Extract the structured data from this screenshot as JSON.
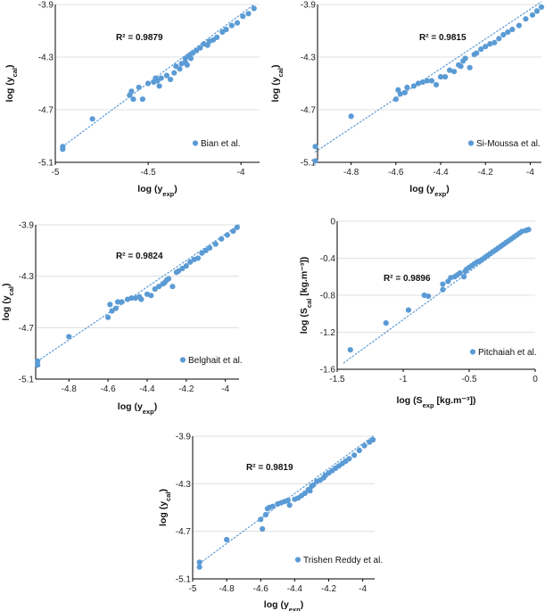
{
  "chart_data": [
    {
      "type": "scatter",
      "xlim": [
        -5,
        -3.9
      ],
      "ylim": [
        -5.1,
        -3.9
      ],
      "xticks": [
        -5,
        -4.5,
        -4
      ],
      "yticks": [
        -5.1,
        -4.7,
        -4.3,
        -3.9
      ],
      "xlabel_main": "log (y",
      "xlabel_sub": "exp",
      "xlabel_end": ")",
      "ylabel_main": "log (y",
      "ylabel_sub": "cal",
      "ylabel_end": ")",
      "annotation": "R² = 0.9879",
      "legend": "Bian et al.",
      "legend_position": "bottom-right",
      "trendline": [
        [
          -4.96,
          -4.98
        ],
        [
          -3.93,
          -3.9
        ]
      ],
      "points": [
        [
          -4.96,
          -4.98
        ],
        [
          -4.96,
          -5.0
        ],
        [
          -4.8,
          -4.77
        ],
        [
          -4.6,
          -4.59
        ],
        [
          -4.58,
          -4.62
        ],
        [
          -4.59,
          -4.56
        ],
        [
          -4.55,
          -4.53
        ],
        [
          -4.53,
          -4.62
        ],
        [
          -4.5,
          -4.5
        ],
        [
          -4.47,
          -4.49
        ],
        [
          -4.46,
          -4.46
        ],
        [
          -4.45,
          -4.48
        ],
        [
          -4.44,
          -4.52
        ],
        [
          -4.43,
          -4.46
        ],
        [
          -4.4,
          -4.44
        ],
        [
          -4.38,
          -4.47
        ],
        [
          -4.36,
          -4.42
        ],
        [
          -4.35,
          -4.37
        ],
        [
          -4.33,
          -4.39
        ],
        [
          -4.32,
          -4.35
        ],
        [
          -4.3,
          -4.34
        ],
        [
          -4.3,
          -4.31
        ],
        [
          -4.29,
          -4.36
        ],
        [
          -4.28,
          -4.29
        ],
        [
          -4.27,
          -4.31
        ],
        [
          -4.26,
          -4.27
        ],
        [
          -4.24,
          -4.25
        ],
        [
          -4.22,
          -4.23
        ],
        [
          -4.2,
          -4.2
        ],
        [
          -4.18,
          -4.21
        ],
        [
          -4.17,
          -4.18
        ],
        [
          -4.15,
          -4.17
        ],
        [
          -4.13,
          -4.15
        ],
        [
          -4.1,
          -4.11
        ],
        [
          -4.08,
          -4.09
        ],
        [
          -4.05,
          -4.06
        ],
        [
          -4.02,
          -4.04
        ],
        [
          -3.99,
          -3.99
        ],
        [
          -3.96,
          -3.97
        ],
        [
          -3.93,
          -3.93
        ]
      ]
    },
    {
      "type": "scatter",
      "xlim": [
        -4.95,
        -3.95
      ],
      "ylim": [
        -5.1,
        -3.9
      ],
      "xticks": [
        -4.8,
        -4.6,
        -4.4,
        -4.2,
        -4
      ],
      "yticks": [
        -5.1,
        -4.7,
        -4.3,
        -3.9
      ],
      "xlabel_main": "log (y",
      "xlabel_sub": "exp",
      "xlabel_end": ")",
      "ylabel_main": "log (y",
      "ylabel_sub": "cal",
      "ylabel_end": ")",
      "annotation": "R² = 0.9815",
      "legend": "Si-Moussa et al.",
      "legend_position": "bottom-right",
      "trendline": [
        [
          -4.96,
          -5.02
        ],
        [
          -3.95,
          -3.88
        ]
      ],
      "points": [
        [
          -4.96,
          -4.98
        ],
        [
          -4.96,
          -5.09
        ],
        [
          -4.8,
          -4.75
        ],
        [
          -4.6,
          -4.62
        ],
        [
          -4.59,
          -4.55
        ],
        [
          -4.58,
          -4.58
        ],
        [
          -4.56,
          -4.57
        ],
        [
          -4.55,
          -4.53
        ],
        [
          -4.52,
          -4.52
        ],
        [
          -4.5,
          -4.5
        ],
        [
          -4.48,
          -4.49
        ],
        [
          -4.46,
          -4.48
        ],
        [
          -4.44,
          -4.48
        ],
        [
          -4.42,
          -4.51
        ],
        [
          -4.4,
          -4.45
        ],
        [
          -4.38,
          -4.45
        ],
        [
          -4.36,
          -4.4
        ],
        [
          -4.34,
          -4.41
        ],
        [
          -4.32,
          -4.36
        ],
        [
          -4.31,
          -4.37
        ],
        [
          -4.3,
          -4.33
        ],
        [
          -4.29,
          -4.31
        ],
        [
          -4.27,
          -4.38
        ],
        [
          -4.25,
          -4.28
        ],
        [
          -4.24,
          -4.27
        ],
        [
          -4.22,
          -4.24
        ],
        [
          -4.2,
          -4.22
        ],
        [
          -4.18,
          -4.2
        ],
        [
          -4.16,
          -4.19
        ],
        [
          -4.14,
          -4.16
        ],
        [
          -4.12,
          -4.13
        ],
        [
          -4.1,
          -4.11
        ],
        [
          -4.08,
          -4.09
        ],
        [
          -4.05,
          -4.06
        ],
        [
          -4.02,
          -4.01
        ],
        [
          -3.99,
          -3.98
        ],
        [
          -3.97,
          -3.95
        ],
        [
          -3.95,
          -3.92
        ]
      ]
    },
    {
      "type": "scatter",
      "xlim": [
        -4.97,
        -3.93
      ],
      "ylim": [
        -5.1,
        -3.9
      ],
      "xticks": [
        -4.8,
        -4.6,
        -4.4,
        -4.2,
        -4
      ],
      "yticks": [
        -5.1,
        -4.7,
        -4.3,
        -3.9
      ],
      "xlabel_main": "log (y",
      "xlabel_sub": "exp",
      "xlabel_end": ")",
      "ylabel_main": "log (y",
      "ylabel_sub": "cal",
      "ylabel_end": ")",
      "annotation": "R² = 0.9824",
      "legend": "Belghait et al.",
      "legend_position": "bottom-right",
      "trendline": [
        [
          -4.96,
          -4.96
        ],
        [
          -3.93,
          -3.9
        ]
      ],
      "points": [
        [
          -4.96,
          -4.96
        ],
        [
          -4.96,
          -4.99
        ],
        [
          -4.8,
          -4.77
        ],
        [
          -4.6,
          -4.62
        ],
        [
          -4.59,
          -4.52
        ],
        [
          -4.58,
          -4.57
        ],
        [
          -4.56,
          -4.55
        ],
        [
          -4.55,
          -4.5
        ],
        [
          -4.53,
          -4.5
        ],
        [
          -4.5,
          -4.48
        ],
        [
          -4.48,
          -4.47
        ],
        [
          -4.46,
          -4.47
        ],
        [
          -4.44,
          -4.46
        ],
        [
          -4.43,
          -4.48
        ],
        [
          -4.4,
          -4.44
        ],
        [
          -4.38,
          -4.45
        ],
        [
          -4.36,
          -4.4
        ],
        [
          -4.34,
          -4.38
        ],
        [
          -4.32,
          -4.36
        ],
        [
          -4.31,
          -4.35
        ],
        [
          -4.3,
          -4.33
        ],
        [
          -4.29,
          -4.32
        ],
        [
          -4.27,
          -4.38
        ],
        [
          -4.25,
          -4.27
        ],
        [
          -4.24,
          -4.26
        ],
        [
          -4.22,
          -4.24
        ],
        [
          -4.2,
          -4.22
        ],
        [
          -4.18,
          -4.19
        ],
        [
          -4.16,
          -4.17
        ],
        [
          -4.14,
          -4.16
        ],
        [
          -4.12,
          -4.12
        ],
        [
          -4.1,
          -4.1
        ],
        [
          -4.08,
          -4.08
        ],
        [
          -4.05,
          -4.05
        ],
        [
          -4.02,
          -4.01
        ],
        [
          -3.99,
          -3.98
        ],
        [
          -3.96,
          -3.95
        ],
        [
          -3.94,
          -3.92
        ]
      ]
    },
    {
      "type": "scatter",
      "xlim": [
        -1.5,
        0
      ],
      "ylim": [
        -1.6,
        0
      ],
      "xticks": [
        -1.5,
        -1,
        -0.5,
        0
      ],
      "yticks": [
        -1.6,
        -1.2,
        -0.8,
        -0.4,
        0
      ],
      "xlabel_main": "log (S",
      "xlabel_sub": "exp",
      "xlabel_end": " [kg.m⁻³])",
      "ylabel_main": "log (S",
      "ylabel_sub": "cal",
      "ylabel_end": " [kg.m⁻³])",
      "annotation": "R² = 0.9896",
      "legend": "Pitchaiah et al.",
      "legend_position": "bottom-right",
      "trendline": [
        [
          -1.45,
          -1.53
        ],
        [
          -0.05,
          -0.08
        ]
      ],
      "points": [
        [
          -1.4,
          -1.39
        ],
        [
          -1.13,
          -1.1
        ],
        [
          -0.96,
          -0.96
        ],
        [
          -0.84,
          -0.8
        ],
        [
          -0.81,
          -0.81
        ],
        [
          -0.7,
          -0.74
        ],
        [
          -0.7,
          -0.68
        ],
        [
          -0.66,
          -0.65
        ],
        [
          -0.64,
          -0.61
        ],
        [
          -0.61,
          -0.6
        ],
        [
          -0.59,
          -0.58
        ],
        [
          -0.57,
          -0.56
        ],
        [
          -0.54,
          -0.6
        ],
        [
          -0.53,
          -0.54
        ],
        [
          -0.52,
          -0.52
        ],
        [
          -0.5,
          -0.5
        ],
        [
          -0.48,
          -0.48
        ],
        [
          -0.46,
          -0.46
        ],
        [
          -0.44,
          -0.44
        ],
        [
          -0.42,
          -0.43
        ],
        [
          -0.4,
          -0.41
        ],
        [
          -0.38,
          -0.39
        ],
        [
          -0.36,
          -0.37
        ],
        [
          -0.34,
          -0.35
        ],
        [
          -0.32,
          -0.33
        ],
        [
          -0.3,
          -0.31
        ],
        [
          -0.28,
          -0.29
        ],
        [
          -0.26,
          -0.27
        ],
        [
          -0.24,
          -0.25
        ],
        [
          -0.22,
          -0.23
        ],
        [
          -0.2,
          -0.21
        ],
        [
          -0.18,
          -0.19
        ],
        [
          -0.16,
          -0.17
        ],
        [
          -0.14,
          -0.15
        ],
        [
          -0.12,
          -0.13
        ],
        [
          -0.1,
          -0.11
        ],
        [
          -0.07,
          -0.1
        ],
        [
          -0.05,
          -0.09
        ]
      ]
    },
    {
      "type": "scatter",
      "xlim": [
        -5,
        -3.93
      ],
      "ylim": [
        -5.1,
        -3.9
      ],
      "xticks": [
        -5,
        -4.8,
        -4.6,
        -4.4,
        -4.2,
        -4
      ],
      "yticks": [
        -5.1,
        -4.7,
        -4.3,
        -3.9
      ],
      "xlabel_main": "log (y",
      "xlabel_sub": "exp",
      "xlabel_end": ")",
      "ylabel_main": "log (y",
      "ylabel_sub": "cal",
      "ylabel_end": ")",
      "annotation": "R² = 0.9819",
      "legend": "Trishen Reddy  et al.",
      "legend_position": "bottom-right",
      "trendline": [
        [
          -4.96,
          -4.97
        ],
        [
          -3.94,
          -3.9
        ]
      ],
      "points": [
        [
          -4.96,
          -4.96
        ],
        [
          -4.96,
          -5.0
        ],
        [
          -4.8,
          -4.77
        ],
        [
          -4.6,
          -4.6
        ],
        [
          -4.59,
          -4.68
        ],
        [
          -4.57,
          -4.56
        ],
        [
          -4.56,
          -4.51
        ],
        [
          -4.55,
          -4.5
        ],
        [
          -4.53,
          -4.49
        ],
        [
          -4.5,
          -4.47
        ],
        [
          -4.48,
          -4.46
        ],
        [
          -4.46,
          -4.45
        ],
        [
          -4.44,
          -4.44
        ],
        [
          -4.43,
          -4.48
        ],
        [
          -4.4,
          -4.43
        ],
        [
          -4.38,
          -4.42
        ],
        [
          -4.36,
          -4.4
        ],
        [
          -4.34,
          -4.38
        ],
        [
          -4.32,
          -4.35
        ],
        [
          -4.31,
          -4.36
        ],
        [
          -4.3,
          -4.32
        ],
        [
          -4.29,
          -4.31
        ],
        [
          -4.27,
          -4.28
        ],
        [
          -4.25,
          -4.27
        ],
        [
          -4.23,
          -4.25
        ],
        [
          -4.22,
          -4.23
        ],
        [
          -4.2,
          -4.21
        ],
        [
          -4.18,
          -4.19
        ],
        [
          -4.16,
          -4.17
        ],
        [
          -4.14,
          -4.15
        ],
        [
          -4.12,
          -4.13
        ],
        [
          -4.1,
          -4.11
        ],
        [
          -4.08,
          -4.09
        ],
        [
          -4.05,
          -4.06
        ],
        [
          -4.02,
          -4.02
        ],
        [
          -3.99,
          -3.98
        ],
        [
          -3.96,
          -3.95
        ],
        [
          -3.94,
          -3.93
        ]
      ]
    }
  ]
}
